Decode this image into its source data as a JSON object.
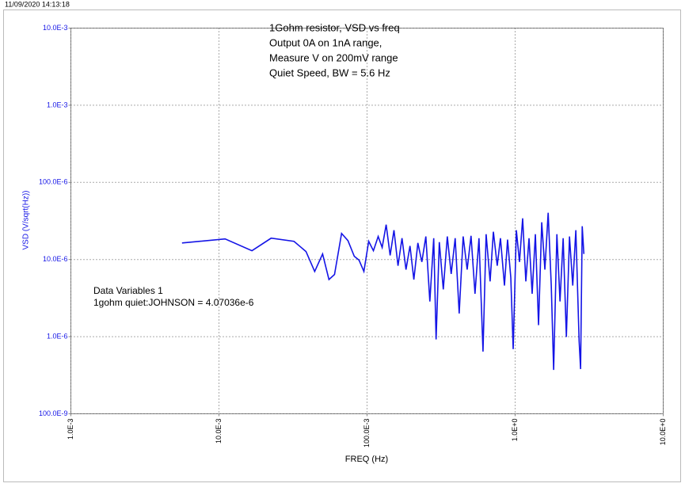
{
  "timestamp": "11/09/2020 14:13:18",
  "chart_data": {
    "type": "line",
    "title_lines": [
      "1Gohm resistor, VSD vs freq",
      "Output 0A on 1nA range,",
      "Measure V on 200mV range",
      "Quiet Speed, BW = 5.6 Hz"
    ],
    "annotation_lines": [
      "Data Variables 1",
      "1gohm quiet:JOHNSON = 4.07036e-6"
    ],
    "x_label": "FREQ (Hz)",
    "y_label": "VSD (V/sqrt(Hz))",
    "x_log": true,
    "y_log": true,
    "grid": true,
    "xlim": [
      0.001,
      10
    ],
    "ylim": [
      1e-07,
      0.01
    ],
    "xticks": [
      {
        "value": 0.001,
        "label": "1.0E-3"
      },
      {
        "value": 0.01,
        "label": "10.0E-3"
      },
      {
        "value": 0.1,
        "label": "100.0E-3"
      },
      {
        "value": 1,
        "label": "1.0E+0"
      },
      {
        "value": 10,
        "label": "10.0E+0"
      }
    ],
    "yticks": [
      {
        "value": 1e-07,
        "label": "100.0E-9"
      },
      {
        "value": 1e-06,
        "label": "1.0E-6"
      },
      {
        "value": 1e-05,
        "label": "10.0E-6"
      },
      {
        "value": 0.0001,
        "label": "100.0E-6"
      },
      {
        "value": 0.001,
        "label": "1.0E-3"
      },
      {
        "value": 0.01,
        "label": "10.0E-3"
      }
    ],
    "series": [
      {
        "color": "#1414e6",
        "x": [
          0.00563,
          0.011,
          0.0167,
          0.0225,
          0.0321,
          0.0387,
          0.0443,
          0.0501,
          0.0553,
          0.0603,
          0.0673,
          0.0743,
          0.082,
          0.0883,
          0.0952,
          0.1026,
          0.1104,
          0.1189,
          0.1265,
          0.1346,
          0.1432,
          0.152,
          0.1618,
          0.1722,
          0.1832,
          0.195,
          0.207,
          0.2204,
          0.2344,
          0.2495,
          0.2655,
          0.282,
          0.2926,
          0.3076,
          0.3273,
          0.3483,
          0.37,
          0.3937,
          0.419,
          0.4457,
          0.4743,
          0.5038,
          0.5358,
          0.57,
          0.6067,
          0.6368,
          0.6776,
          0.7129,
          0.757,
          0.796,
          0.847,
          0.889,
          0.935,
          0.97,
          1.019,
          1.07,
          1.124,
          1.181,
          1.241,
          1.303,
          1.37,
          1.439,
          1.512,
          1.588,
          1.671,
          1.754,
          1.82,
          1.914,
          2.009,
          2.11,
          2.218,
          2.328,
          2.449,
          2.57,
          2.704,
          2.767,
          2.838,
          2.911
        ],
        "values": [
          1.64e-05,
          1.85e-05,
          1.3e-05,
          1.89e-05,
          1.72e-05,
          1.27e-05,
          7e-06,
          1.18e-05,
          5.5e-06,
          6.4e-06,
          2.18e-05,
          1.76e-05,
          1.1e-05,
          9.8e-06,
          7e-06,
          1.72e-05,
          1.3e-05,
          1.99e-05,
          1.43e-05,
          2.83e-05,
          1.13e-05,
          2.4e-05,
          8.3e-06,
          1.89e-05,
          7.4e-06,
          1.5e-05,
          5.5e-06,
          1.64e-05,
          9.3e-06,
          1.99e-05,
          2.86e-06,
          1.89e-05,
          9.2e-07,
          1.68e-05,
          4.1e-06,
          1.99e-05,
          6.5e-06,
          1.89e-05,
          2e-06,
          1.99e-05,
          7.4e-06,
          2.03e-05,
          3.6e-06,
          1.89e-05,
          6.4e-07,
          2.13e-05,
          5.2e-06,
          2.29e-05,
          8.3e-06,
          1.89e-05,
          4.6e-06,
          1.81e-05,
          5.8e-06,
          6.9e-07,
          2.4e-05,
          9.3e-06,
          3.42e-05,
          5.2e-06,
          1.89e-05,
          3.6e-06,
          2.13e-05,
          1.41e-06,
          3.04e-05,
          7.4e-06,
          4.04e-05,
          4.6e-06,
          3.7e-07,
          2.13e-05,
          2.86e-06,
          1.89e-05,
          9.9e-07,
          1.99e-05,
          4.6e-06,
          2.4e-05,
          8.8e-07,
          3.8e-07,
          2.7e-05,
          1.18e-05
        ]
      }
    ]
  }
}
